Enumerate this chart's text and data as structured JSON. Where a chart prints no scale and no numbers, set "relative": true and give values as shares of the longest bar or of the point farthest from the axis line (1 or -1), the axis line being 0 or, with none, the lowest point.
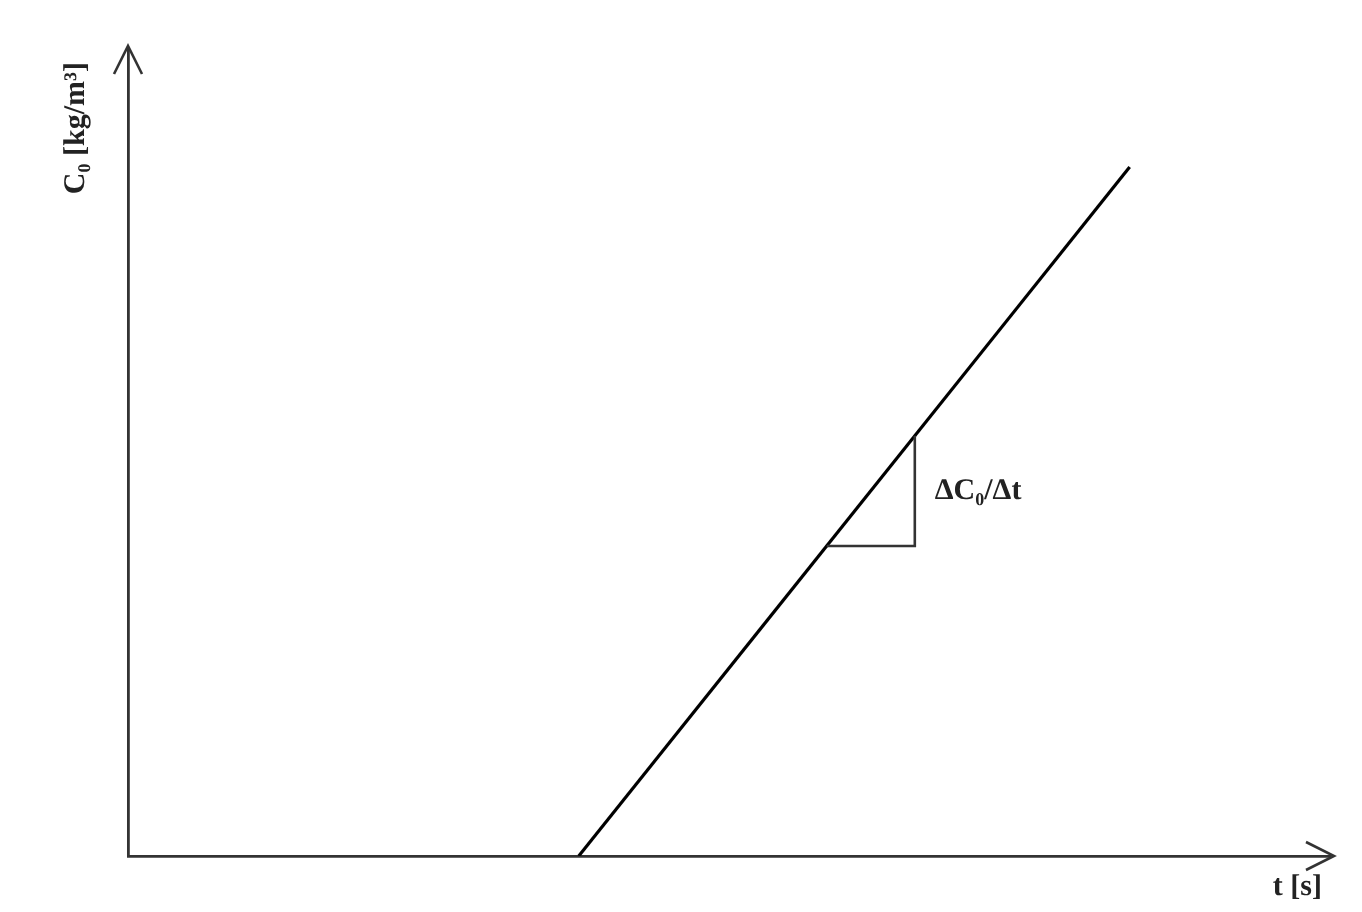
{
  "chart_data": {
    "type": "line",
    "relative": true,
    "xlabel": "t [s]",
    "ylabel": "C₀ [kg/m³]",
    "categories": [
      null,
      null,
      null,
      null,
      null,
      null,
      null,
      null,
      null,
      null,
      null,
      null,
      null,
      null,
      null,
      null,
      null,
      null,
      null,
      null,
      null,
      null,
      null,
      null,
      null
    ],
    "series": [
      {
        "color": "#000000",
        "values": [
          null,
          null,
          null,
          null,
          null,
          null,
          null,
          null,
          null,
          0,
          null,
          null,
          null,
          null,
          null,
          null,
          null,
          null,
          null,
          null,
          1,
          null,
          null,
          null,
          null
        ]
      }
    ],
    "annotations": [
      "ΔC₀/Δt"
    ],
    "tick_labels": false,
    "grid": false,
    "legend": false,
    "marker": "none",
    "line_style": "solid"
  }
}
